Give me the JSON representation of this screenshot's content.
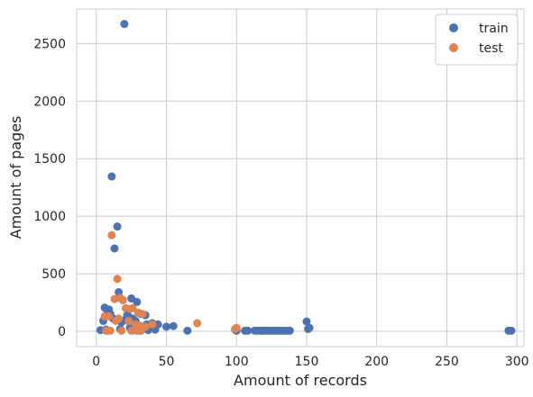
{
  "chart_data": {
    "type": "scatter",
    "xlabel": "Amount of records",
    "ylabel": "Amount of pages",
    "xlim": [
      -14,
      305
    ],
    "ylim": [
      -133,
      2800
    ],
    "xticks": [
      0,
      50,
      100,
      150,
      200,
      250,
      300
    ],
    "yticks": [
      0,
      500,
      1000,
      1500,
      2000,
      2500
    ],
    "grid": true,
    "legend_position": "top-right",
    "series": [
      {
        "name": "train",
        "color": "#4c72b0",
        "points": [
          [
            20,
            2670
          ],
          [
            11,
            1345
          ],
          [
            15,
            910
          ],
          [
            13,
            720
          ],
          [
            16,
            340
          ],
          [
            6,
            205
          ],
          [
            9,
            190
          ],
          [
            25,
            285
          ],
          [
            29,
            255
          ],
          [
            8,
            170
          ],
          [
            10,
            150
          ],
          [
            12,
            110
          ],
          [
            14,
            95
          ],
          [
            18,
            80
          ],
          [
            19,
            270
          ],
          [
            22,
            140
          ],
          [
            23,
            130
          ],
          [
            26,
            110
          ],
          [
            28,
            90
          ],
          [
            30,
            160
          ],
          [
            32,
            150
          ],
          [
            35,
            140
          ],
          [
            36,
            60
          ],
          [
            38,
            40
          ],
          [
            40,
            70
          ],
          [
            44,
            60
          ],
          [
            50,
            40
          ],
          [
            55,
            45
          ],
          [
            65,
            5
          ],
          [
            3,
            10
          ],
          [
            5,
            90
          ],
          [
            7,
            15
          ],
          [
            17,
            20
          ],
          [
            21,
            100
          ],
          [
            24,
            30
          ],
          [
            27,
            10
          ],
          [
            31,
            5
          ],
          [
            33,
            20
          ],
          [
            37,
            10
          ],
          [
            42,
            15
          ],
          [
            99,
            15
          ],
          [
            100,
            5
          ],
          [
            106,
            5
          ],
          [
            108,
            5
          ],
          [
            113,
            5
          ],
          [
            115,
            5
          ],
          [
            117,
            5
          ],
          [
            118,
            5
          ],
          [
            120,
            5
          ],
          [
            122,
            5
          ],
          [
            124,
            5
          ],
          [
            126,
            5
          ],
          [
            128,
            5
          ],
          [
            130,
            5
          ],
          [
            132,
            5
          ],
          [
            134,
            5
          ],
          [
            136,
            5
          ],
          [
            138,
            5
          ],
          [
            150,
            85
          ],
          [
            151,
            20
          ],
          [
            152,
            30
          ],
          [
            294,
            5
          ],
          [
            296,
            5
          ]
        ]
      },
      {
        "name": "test",
        "color": "#dd8452",
        "points": [
          [
            11,
            835
          ],
          [
            15,
            455
          ],
          [
            13,
            280
          ],
          [
            17,
            290
          ],
          [
            19,
            270
          ],
          [
            21,
            200
          ],
          [
            24,
            195
          ],
          [
            26,
            200
          ],
          [
            30,
            160
          ],
          [
            33,
            150
          ],
          [
            9,
            130
          ],
          [
            6,
            130
          ],
          [
            14,
            90
          ],
          [
            16,
            110
          ],
          [
            23,
            90
          ],
          [
            28,
            60
          ],
          [
            31,
            50
          ],
          [
            35,
            40
          ],
          [
            40,
            60
          ],
          [
            72,
            70
          ],
          [
            99,
            20
          ],
          [
            100,
            30
          ],
          [
            8,
            5
          ],
          [
            10,
            5
          ],
          [
            18,
            5
          ],
          [
            25,
            5
          ],
          [
            29,
            5
          ],
          [
            32,
            5
          ],
          [
            7,
            5
          ]
        ]
      }
    ]
  }
}
